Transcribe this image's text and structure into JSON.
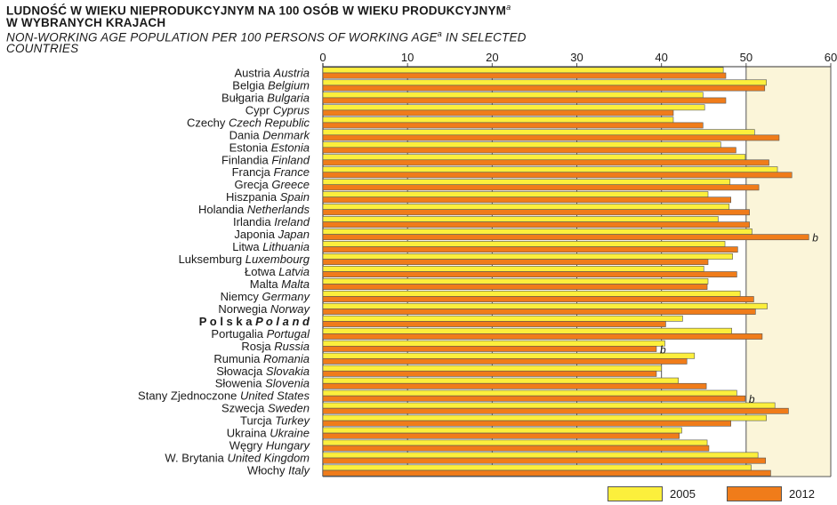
{
  "title": {
    "pl_line1": "LUDNOŚĆ W WIEKU NIEPRODUKCYJNYM NA 100 OSÓB W WIEKU PRODUKCYJNYM",
    "pl_line1_sup": "a",
    "pl_line2": "W WYBRANYCH KRAJACH",
    "en_line1": "NON-WORKING AGE POPULATION PER 100 PERSONS OF WORKING AGE",
    "en_line1_sup": "a",
    "en_line1_tail": " IN SELECTED",
    "en_line2": "COUNTRIES"
  },
  "colors": {
    "series_2005": "#fcef3c",
    "series_2012": "#f07c1a",
    "highlight_band": "#fbf5d9",
    "bar_edge": "#555555"
  },
  "chart_data": {
    "type": "bar",
    "orientation": "horizontal",
    "xlim": [
      0,
      60
    ],
    "xticks": [
      "0",
      "10",
      "20",
      "30",
      "40",
      "50",
      "60"
    ],
    "highlight_band_from": 50,
    "grid": true,
    "legend_position": "bottom-right",
    "categories": [
      {
        "pl": "Austria",
        "en": "Austria"
      },
      {
        "pl": "Belgia",
        "en": "Belgium"
      },
      {
        "pl": "Bułgaria",
        "en": "Bulgaria"
      },
      {
        "pl": "Cypr",
        "en": "Cyprus"
      },
      {
        "pl": "Czechy",
        "en": "Czech Republic"
      },
      {
        "pl": "Dania",
        "en": "Denmark"
      },
      {
        "pl": "Estonia",
        "en": "Estonia"
      },
      {
        "pl": "Finlandia",
        "en": "Finland"
      },
      {
        "pl": "Francja",
        "en": "France"
      },
      {
        "pl": "Grecja",
        "en": "Greece"
      },
      {
        "pl": "Hiszpania",
        "en": "Spain"
      },
      {
        "pl": "Holandia",
        "en": "Netherlands"
      },
      {
        "pl": "Irlandia",
        "en": "Ireland"
      },
      {
        "pl": "Japonia",
        "en": "Japan"
      },
      {
        "pl": "Litwa",
        "en": "Lithuania"
      },
      {
        "pl": "Luksemburg",
        "en": "Luxembourg"
      },
      {
        "pl": "Łotwa",
        "en": "Latvia"
      },
      {
        "pl": "Malta",
        "en": "Malta"
      },
      {
        "pl": "Niemcy",
        "en": "Germany"
      },
      {
        "pl": "Norwegia",
        "en": "Norway"
      },
      {
        "pl": "P o l s k a",
        "en": "P o l a n d",
        "bold": true
      },
      {
        "pl": "Portugalia",
        "en": "Portugal"
      },
      {
        "pl": "Rosja",
        "en": "Russia"
      },
      {
        "pl": "Rumunia",
        "en": "Romania"
      },
      {
        "pl": "Słowacja",
        "en": "Slovakia"
      },
      {
        "pl": "Słowenia",
        "en": "Slovenia"
      },
      {
        "pl": "Stany Zjednoczone",
        "en": "United States"
      },
      {
        "pl": "Szwecja",
        "en": "Sweden"
      },
      {
        "pl": "Turcja",
        "en": "Turkey"
      },
      {
        "pl": "Ukraina",
        "en": "Ukraine"
      },
      {
        "pl": "Węgry",
        "en": "Hungary"
      },
      {
        "pl": "W. Brytania",
        "en": "United Kingdom"
      },
      {
        "pl": "Włochy",
        "en": "Italy"
      }
    ],
    "series": [
      {
        "name": "2005",
        "values": [
          47.3,
          52.4,
          44.9,
          45.1,
          41.4,
          51.0,
          47.0,
          49.9,
          53.7,
          48.1,
          45.5,
          48.0,
          46.7,
          50.7,
          47.5,
          48.4,
          45.0,
          45.5,
          49.3,
          52.5,
          42.5,
          48.3,
          40.4,
          43.9,
          40.0,
          42.0,
          48.9,
          53.4,
          52.4,
          42.4,
          45.4,
          51.4,
          50.6
        ]
      },
      {
        "name": "2012",
        "values": [
          47.6,
          52.2,
          47.6,
          41.4,
          44.9,
          53.9,
          48.8,
          52.7,
          55.4,
          51.5,
          48.2,
          50.4,
          50.4,
          57.4,
          49.0,
          45.5,
          48.9,
          45.4,
          50.9,
          51.1,
          40.5,
          51.9,
          39.4,
          43.0,
          39.4,
          45.3,
          49.9,
          55.0,
          48.2,
          42.1,
          45.6,
          52.3,
          52.9
        ]
      }
    ],
    "annotations": [
      {
        "category": "Japonia",
        "series": "2012",
        "text": "b"
      },
      {
        "category": "Rosja",
        "series": "2012",
        "text": "b"
      },
      {
        "category": "Stany Zjednoczone",
        "series": "2012",
        "text": "b"
      }
    ],
    "legend": [
      "2005",
      "2012"
    ]
  }
}
